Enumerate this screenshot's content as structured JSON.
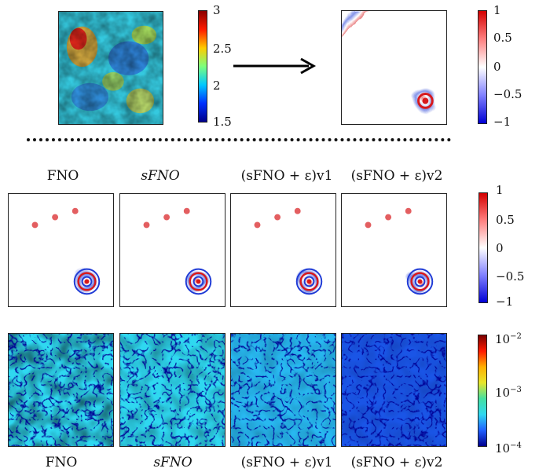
{
  "figure": {
    "top": {
      "input_colorbar_ticks": [
        "3",
        "2.5",
        "2",
        "1.5"
      ],
      "output_colorbar_ticks": [
        "1",
        "0.5",
        "0",
        "−0.5",
        "−1"
      ]
    },
    "row_titles": [
      "FNO",
      "sFNO",
      "(sFNO + ε)v1",
      "(sFNO + ε)v2"
    ],
    "wavefield_colorbar_ticks": [
      "1",
      "0.5",
      "0",
      "−0.5",
      "−1"
    ],
    "error_colorbar_ticks": [
      "10",
      "10",
      "10"
    ],
    "error_colorbar_exponents": [
      "−2",
      "−3",
      "−4"
    ],
    "bottom_labels": [
      "FNO",
      "sFNO",
      "(sFNO + ε)v1",
      "(sFNO + ε)v2"
    ],
    "colors": {
      "red": "#d7191c",
      "blue": "#1f3bd6",
      "jet_dark_blue": "#00008f",
      "jet_cyan": "#2fd8f0",
      "jet_yellow": "#e8e62a",
      "jet_red": "#d61f1a"
    }
  }
}
